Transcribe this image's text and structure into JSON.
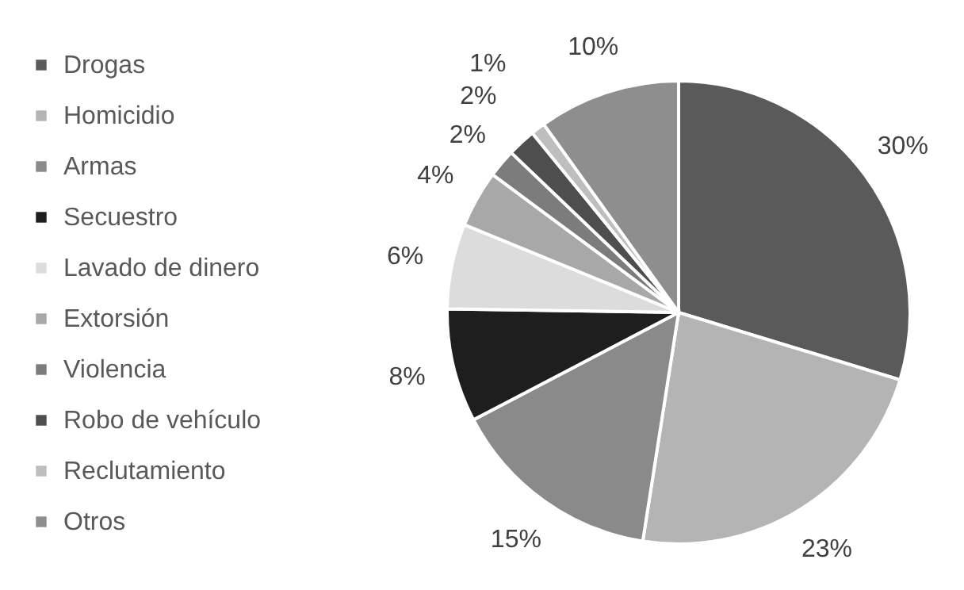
{
  "chart_data": {
    "type": "pie",
    "categories": [
      "Drogas",
      "Homicidio",
      "Armas",
      "Secuestro",
      "Lavado de dinero",
      "Extorsión",
      "Violencia",
      "Robo de vehículo",
      "Reclutamiento",
      "Otros"
    ],
    "values": [
      30,
      23,
      15,
      8,
      6,
      4,
      2,
      2,
      1,
      10
    ],
    "value_labels": [
      "30%",
      "23%",
      "15%",
      "8%",
      "6%",
      "4%",
      "2%",
      "2%",
      "1%",
      "10%"
    ],
    "colors": [
      "#5a5a5a",
      "#b4b4b4",
      "#8a8a8a",
      "#1e1e1e",
      "#dcdcdc",
      "#a8a8a8",
      "#7c7c7c",
      "#4e4e4e",
      "#bebebe",
      "#8e8e8e"
    ],
    "legend": "left"
  }
}
